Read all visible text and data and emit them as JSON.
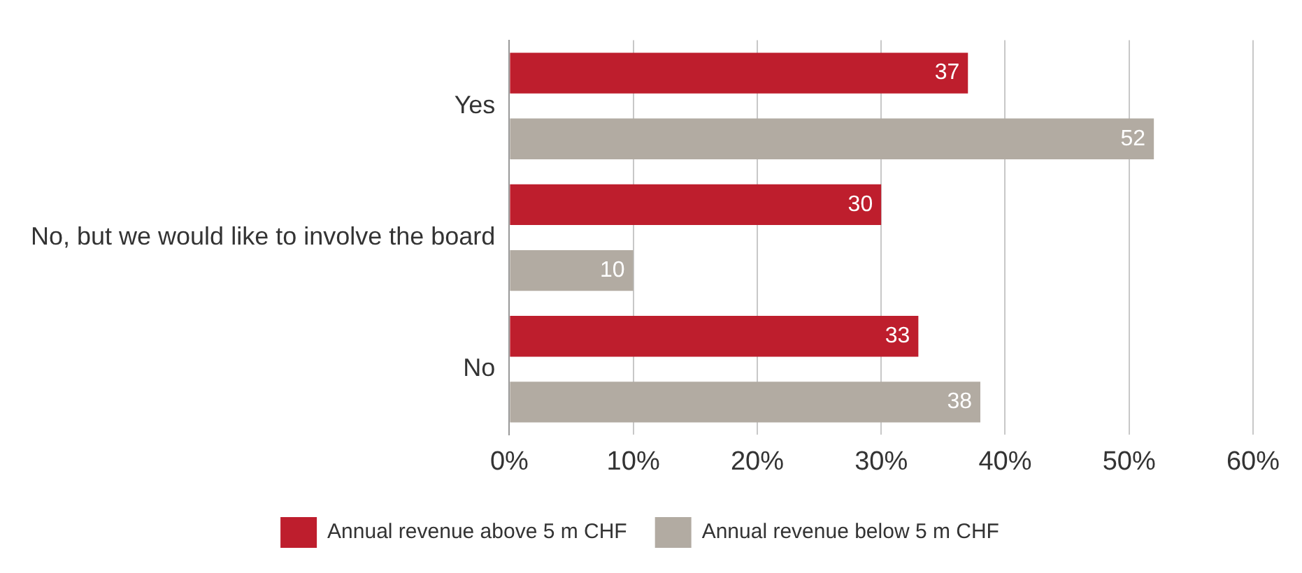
{
  "chart_data": {
    "type": "bar",
    "orientation": "horizontal",
    "categories": [
      "Yes",
      "No, but we would like to involve the board",
      "No"
    ],
    "series": [
      {
        "name": "Annual revenue above 5 m CHF",
        "color": "#be1e2d",
        "values": [
          37,
          30,
          33
        ]
      },
      {
        "name": "Annual revenue below 5 m CHF",
        "color": "#b2aba2",
        "values": [
          52,
          10,
          38
        ]
      }
    ],
    "xlim": [
      0,
      60
    ],
    "xticks": [
      {
        "value": 0,
        "label": "0%"
      },
      {
        "value": 10,
        "label": "10%"
      },
      {
        "value": 20,
        "label": "20%"
      },
      {
        "value": 30,
        "label": "30%"
      },
      {
        "value": 40,
        "label": "40%"
      },
      {
        "value": 50,
        "label": "50%"
      },
      {
        "value": 60,
        "label": "60%"
      }
    ],
    "grid": "x",
    "legend": "bottom",
    "data_labels": true
  }
}
